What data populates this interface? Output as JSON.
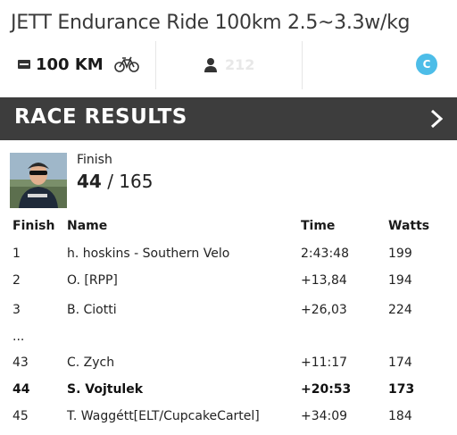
{
  "event": {
    "title": "JETT Endurance Ride 100km 2.5~3.3w/kg"
  },
  "stats": {
    "distance": "100 KM",
    "distance_icon": "distance-icon",
    "sport_icon": "bicycle-icon",
    "riders_icon": "person-icon",
    "rider_count": "212",
    "category": "C",
    "category_color": "#4dbde8"
  },
  "results": {
    "heading": "RACE RESULTS",
    "finish_label": "Finish",
    "position": "44",
    "separator": " / ",
    "total": "165",
    "columns": {
      "finish": "Finish",
      "name": "Name",
      "time": "Time",
      "watts": "Watts"
    },
    "rows": [
      {
        "finish": "1",
        "name": "h. hoskins - Southern Velo",
        "time": "2:43:48",
        "watts": "199"
      },
      {
        "finish": "2",
        "name": "O. [RPP]",
        "time": "+13,84",
        "watts": "194"
      },
      {
        "finish": "3",
        "name": "B. Ciotti",
        "time": "+26,03",
        "watts": "224"
      },
      {
        "finish": "...",
        "name": "",
        "time": "",
        "watts": ""
      },
      {
        "finish": "43",
        "name": "C. Zych",
        "time": "+11:17",
        "watts": "174"
      },
      {
        "finish": "44",
        "name": "S. Vojtulek",
        "time": "+20:53",
        "watts": "173"
      },
      {
        "finish": "45",
        "name": "T. Waggétt[ELT/CupcakeCartel]",
        "time": "+34:09",
        "watts": "184"
      }
    ]
  },
  "colors": {
    "results_bar": "#3d3d3d",
    "accent": "#4dbde8"
  }
}
